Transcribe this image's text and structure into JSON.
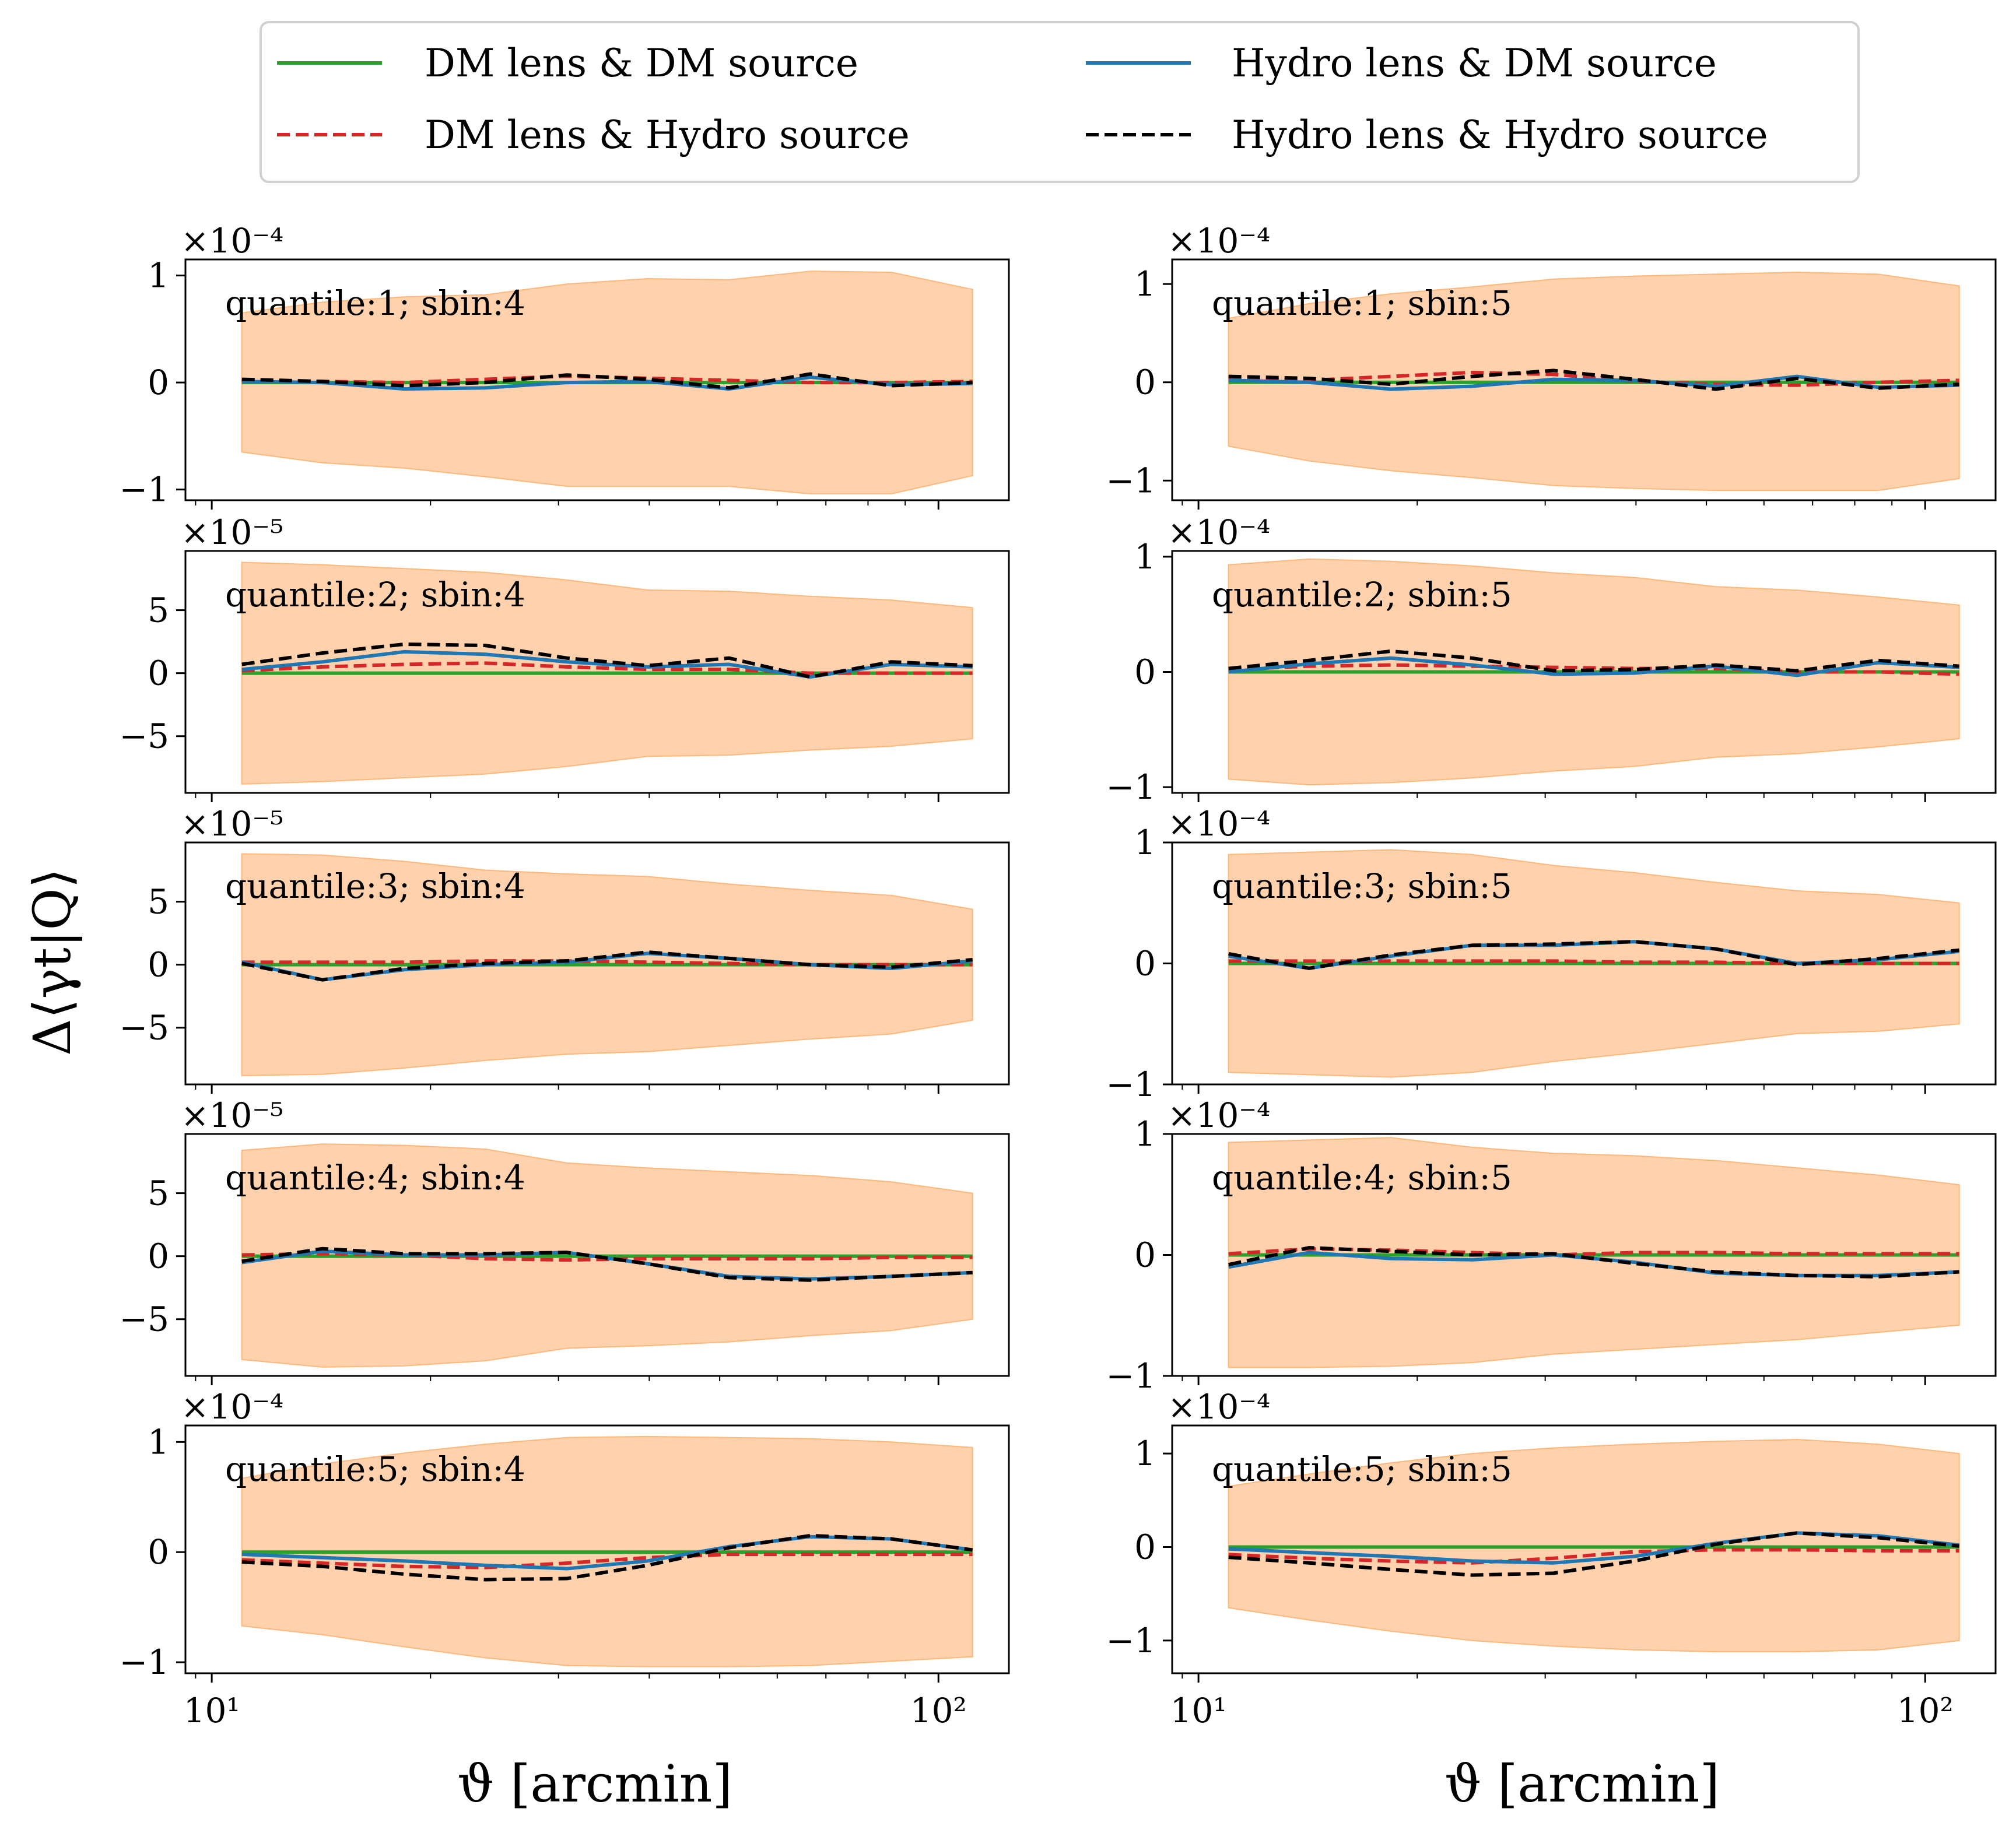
{
  "legend": {
    "columns": 2,
    "entries": [
      {
        "label": "DM lens & DM source",
        "color": "#2ca02c",
        "dash": "solid"
      },
      {
        "label": "DM lens & Hydro source",
        "color": "#d62728",
        "dash": "dashed"
      },
      {
        "label": "Hydro lens & DM source",
        "color": "#1f77b4",
        "dash": "solid"
      },
      {
        "label": "Hydro lens & Hydro source",
        "color": "#000000",
        "dash": "dashed"
      }
    ]
  },
  "ylabel": "Δ⟨γt|Q⟩",
  "xlabel": "ϑ [arcmin]",
  "band_color": "#ffb77a",
  "chart_data": {
    "type": "line",
    "xscale": "log",
    "xlim": [
      9.2,
      125
    ],
    "x": [
      11.0,
      14.2,
      18.4,
      23.8,
      30.8,
      39.8,
      51.5,
      66.6,
      86.1,
      111.4
    ],
    "x_ticks": [
      {
        "value": 10,
        "label": "10¹"
      },
      {
        "value": 100,
        "label": "10²"
      }
    ],
    "panels": [
      {
        "title": "quantile:1; sbin:4",
        "multiplier": "×10⁻⁴",
        "ylim": [
          -1.1,
          1.15
        ],
        "yticks": [
          {
            "v": 1,
            "l": "1"
          },
          {
            "v": 0,
            "l": "0"
          },
          {
            "v": -1,
            "l": "−1"
          }
        ],
        "band_upper": [
          0.65,
          0.75,
          0.8,
          0.82,
          0.92,
          0.97,
          0.96,
          1.04,
          1.03,
          0.87
        ],
        "band_lower": [
          -0.65,
          -0.75,
          -0.8,
          -0.88,
          -0.97,
          -0.97,
          -0.97,
          -1.04,
          -1.04,
          -0.87
        ],
        "series": {
          "dm_dm": [
            0,
            0,
            0,
            0,
            0,
            0,
            0,
            0,
            0,
            0
          ],
          "dm_hydro": [
            0.02,
            0.01,
            0.0,
            0.03,
            0.06,
            0.04,
            0.02,
            0.0,
            0.0,
            0.01
          ],
          "hydro_dm": [
            0.01,
            0.0,
            -0.06,
            -0.05,
            0.0,
            0.01,
            -0.06,
            0.05,
            -0.02,
            -0.01
          ],
          "hydro_hydro": [
            0.03,
            0.01,
            -0.03,
            0.0,
            0.07,
            0.03,
            -0.05,
            0.08,
            -0.03,
            0.0
          ]
        }
      },
      {
        "title": "quantile:1; sbin:5",
        "multiplier": "×10⁻⁴",
        "ylim": [
          -1.2,
          1.25
        ],
        "yticks": [
          {
            "v": 1,
            "l": "1"
          },
          {
            "v": 0,
            "l": "0"
          },
          {
            "v": -1,
            "l": "−1"
          }
        ],
        "band_upper": [
          0.65,
          0.8,
          0.9,
          0.97,
          1.05,
          1.08,
          1.1,
          1.12,
          1.1,
          0.98
        ],
        "band_lower": [
          -0.65,
          -0.8,
          -0.9,
          -0.97,
          -1.05,
          -1.08,
          -1.1,
          -1.1,
          -1.1,
          -0.98
        ],
        "series": {
          "dm_dm": [
            0,
            0,
            0,
            0,
            0,
            0,
            0,
            0,
            0,
            0
          ],
          "dm_hydro": [
            0.03,
            0.02,
            0.06,
            0.1,
            0.08,
            0.01,
            -0.02,
            -0.03,
            0.0,
            0.02
          ],
          "hydro_dm": [
            0.02,
            0.0,
            -0.07,
            -0.04,
            0.03,
            0.02,
            -0.04,
            0.06,
            -0.05,
            -0.03
          ],
          "hydro_hydro": [
            0.06,
            0.04,
            -0.02,
            0.06,
            0.12,
            0.03,
            -0.07,
            0.04,
            -0.06,
            -0.02
          ]
        }
      },
      {
        "title": "quantile:2; sbin:4",
        "multiplier": "×10⁻⁵",
        "ylim": [
          -9.5,
          9.7
        ],
        "yticks": [
          {
            "v": 5,
            "l": "5"
          },
          {
            "v": 0,
            "l": "0"
          },
          {
            "v": -5,
            "l": "−5"
          }
        ],
        "band_upper": [
          8.8,
          8.6,
          8.3,
          8.0,
          7.4,
          6.6,
          6.5,
          6.1,
          5.8,
          5.2
        ],
        "band_lower": [
          -8.8,
          -8.6,
          -8.3,
          -8.0,
          -7.4,
          -6.6,
          -6.5,
          -6.1,
          -5.8,
          -5.2
        ],
        "series": {
          "dm_dm": [
            0,
            0,
            0,
            0,
            0,
            0,
            0,
            0,
            0,
            0
          ],
          "dm_hydro": [
            0.2,
            0.5,
            0.7,
            0.8,
            0.5,
            0.3,
            0.3,
            0.0,
            0.0,
            0.0
          ],
          "hydro_dm": [
            0.3,
            0.9,
            1.7,
            1.5,
            0.9,
            0.5,
            0.7,
            -0.3,
            0.7,
            0.5
          ],
          "hydro_hydro": [
            0.7,
            1.6,
            2.3,
            2.2,
            1.2,
            0.6,
            1.2,
            -0.3,
            0.9,
            0.6
          ]
        }
      },
      {
        "title": "quantile:2; sbin:5",
        "multiplier": "×10⁻⁴",
        "ylim": [
          -1.05,
          1.05
        ],
        "yticks": [
          {
            "v": 1,
            "l": "1"
          },
          {
            "v": 0,
            "l": "0"
          },
          {
            "v": -1,
            "l": "−1"
          }
        ],
        "band_upper": [
          0.93,
          0.98,
          0.96,
          0.92,
          0.86,
          0.82,
          0.74,
          0.71,
          0.65,
          0.58
        ],
        "band_lower": [
          -0.93,
          -0.98,
          -0.96,
          -0.92,
          -0.86,
          -0.82,
          -0.74,
          -0.71,
          -0.65,
          -0.58
        ],
        "series": {
          "dm_dm": [
            0,
            0,
            0,
            0,
            0,
            0,
            0,
            0,
            0,
            0
          ],
          "dm_hydro": [
            0.02,
            0.05,
            0.06,
            0.05,
            0.04,
            0.03,
            0.03,
            0.0,
            0.0,
            -0.02
          ],
          "hydro_dm": [
            0.0,
            0.07,
            0.12,
            0.06,
            -0.02,
            -0.01,
            0.05,
            -0.03,
            0.08,
            0.04
          ],
          "hydro_hydro": [
            0.03,
            0.1,
            0.18,
            0.12,
            0.01,
            0.02,
            0.06,
            0.01,
            0.1,
            0.05
          ]
        }
      },
      {
        "title": "quantile:3; sbin:4",
        "multiplier": "×10⁻⁵",
        "ylim": [
          -9.5,
          9.7
        ],
        "yticks": [
          {
            "v": 5,
            "l": "5"
          },
          {
            "v": 0,
            "l": "0"
          },
          {
            "v": -5,
            "l": "−5"
          }
        ],
        "band_upper": [
          8.8,
          8.7,
          8.2,
          7.5,
          7.2,
          7.0,
          6.4,
          5.9,
          5.5,
          4.4
        ],
        "band_lower": [
          -8.8,
          -8.7,
          -8.2,
          -7.6,
          -7.1,
          -6.9,
          -6.4,
          -5.9,
          -5.5,
          -4.4
        ],
        "series": {
          "dm_dm": [
            0,
            0,
            0,
            0,
            0,
            0,
            0,
            0,
            0,
            0
          ],
          "dm_hydro": [
            0.2,
            0.2,
            0.2,
            0.3,
            0.3,
            0.2,
            0.1,
            0.0,
            0.0,
            0.0
          ],
          "hydro_dm": [
            0.2,
            -1.2,
            -0.4,
            0.0,
            0.2,
            0.9,
            0.5,
            0.0,
            -0.3,
            0.3
          ],
          "hydro_hydro": [
            0.1,
            -1.2,
            -0.3,
            0.1,
            0.3,
            1.0,
            0.5,
            0.0,
            -0.2,
            0.4
          ]
        }
      },
      {
        "title": "quantile:3; sbin:5",
        "multiplier": "×10⁻⁴",
        "ylim": [
          -1.0,
          1.0
        ],
        "yticks": [
          {
            "v": 1,
            "l": "1"
          },
          {
            "v": 0,
            "l": "0"
          },
          {
            "v": -1,
            "l": "−1"
          }
        ],
        "band_upper": [
          0.9,
          0.92,
          0.94,
          0.9,
          0.81,
          0.75,
          0.67,
          0.6,
          0.57,
          0.5
        ],
        "band_lower": [
          -0.9,
          -0.92,
          -0.94,
          -0.9,
          -0.81,
          -0.74,
          -0.66,
          -0.58,
          -0.56,
          -0.5
        ],
        "series": {
          "dm_dm": [
            0,
            0,
            0,
            0,
            0,
            0,
            0,
            0,
            0,
            0
          ],
          "dm_hydro": [
            0.02,
            0.02,
            0.02,
            0.02,
            0.02,
            0.01,
            0.01,
            0.0,
            0.0,
            0.0
          ],
          "hydro_dm": [
            0.06,
            -0.04,
            0.06,
            0.15,
            0.15,
            0.18,
            0.12,
            0.0,
            0.03,
            0.1
          ],
          "hydro_hydro": [
            0.08,
            -0.04,
            0.07,
            0.15,
            0.16,
            0.18,
            0.12,
            -0.01,
            0.04,
            0.11
          ]
        }
      },
      {
        "title": "quantile:4; sbin:4",
        "multiplier": "×10⁻⁵",
        "ylim": [
          -9.5,
          9.7
        ],
        "yticks": [
          {
            "v": 5,
            "l": "5"
          },
          {
            "v": 0,
            "l": "0"
          },
          {
            "v": -5,
            "l": "−5"
          }
        ],
        "band_upper": [
          8.4,
          8.9,
          8.8,
          8.5,
          7.4,
          7.0,
          6.7,
          6.4,
          5.9,
          5.0
        ],
        "band_lower": [
          -8.2,
          -8.8,
          -8.7,
          -8.3,
          -7.3,
          -7.1,
          -6.8,
          -6.3,
          -5.9,
          -5.0
        ],
        "series": {
          "dm_dm": [
            0,
            0,
            0,
            0,
            0,
            0,
            0,
            0,
            0,
            0
          ],
          "dm_hydro": [
            0.1,
            0.2,
            0.1,
            -0.2,
            -0.3,
            -0.2,
            -0.2,
            -0.2,
            -0.1,
            -0.1
          ],
          "hydro_dm": [
            -0.5,
            0.4,
            0.1,
            0.1,
            0.3,
            -0.6,
            -1.6,
            -1.8,
            -1.6,
            -1.3
          ],
          "hydro_hydro": [
            -0.4,
            0.6,
            0.2,
            0.2,
            0.3,
            -0.6,
            -1.7,
            -1.9,
            -1.6,
            -1.3
          ]
        }
      },
      {
        "title": "quantile:4; sbin:5",
        "multiplier": "×10⁻⁴",
        "ylim": [
          -1.0,
          1.0
        ],
        "yticks": [
          {
            "v": 1,
            "l": "1"
          },
          {
            "v": 0,
            "l": "0"
          },
          {
            "v": -1,
            "l": "−1"
          }
        ],
        "band_upper": [
          0.93,
          0.95,
          0.97,
          0.89,
          0.84,
          0.82,
          0.78,
          0.72,
          0.66,
          0.58
        ],
        "band_lower": [
          -0.93,
          -0.93,
          -0.92,
          -0.89,
          -0.82,
          -0.78,
          -0.74,
          -0.7,
          -0.64,
          -0.58
        ],
        "series": {
          "dm_dm": [
            0,
            0,
            0,
            0,
            0,
            0,
            0,
            0,
            0,
            0
          ],
          "dm_hydro": [
            0.01,
            0.05,
            0.04,
            0.02,
            0.0,
            0.02,
            0.02,
            0.01,
            0.01,
            0.01
          ],
          "hydro_dm": [
            -0.1,
            0.02,
            -0.03,
            -0.04,
            0.0,
            -0.06,
            -0.15,
            -0.17,
            -0.17,
            -0.14
          ],
          "hydro_hydro": [
            -0.08,
            0.06,
            0.03,
            0.0,
            0.01,
            -0.07,
            -0.14,
            -0.17,
            -0.18,
            -0.14
          ]
        }
      },
      {
        "title": "quantile:5; sbin:4",
        "multiplier": "×10⁻⁴",
        "ylim": [
          -1.1,
          1.15
        ],
        "yticks": [
          {
            "v": 1,
            "l": "1"
          },
          {
            "v": 0,
            "l": "0"
          },
          {
            "v": -1,
            "l": "−1"
          }
        ],
        "band_upper": [
          0.67,
          0.8,
          0.9,
          0.98,
          1.04,
          1.05,
          1.04,
          1.03,
          1.0,
          0.95
        ],
        "band_lower": [
          -0.67,
          -0.75,
          -0.86,
          -0.96,
          -1.03,
          -1.04,
          -1.04,
          -1.03,
          -0.99,
          -0.95
        ],
        "series": {
          "dm_dm": [
            0,
            0,
            0,
            0,
            0,
            0,
            0,
            0,
            0,
            0
          ],
          "dm_hydro": [
            -0.07,
            -0.1,
            -0.13,
            -0.14,
            -0.1,
            -0.05,
            -0.02,
            -0.02,
            -0.02,
            -0.02
          ],
          "hydro_dm": [
            -0.02,
            -0.05,
            -0.08,
            -0.12,
            -0.15,
            -0.08,
            0.05,
            0.14,
            0.12,
            0.02
          ],
          "hydro_hydro": [
            -0.09,
            -0.13,
            -0.2,
            -0.25,
            -0.24,
            -0.12,
            0.04,
            0.15,
            0.12,
            0.02
          ]
        }
      },
      {
        "title": "quantile:5; sbin:5",
        "multiplier": "×10⁻⁴",
        "ylim": [
          -1.35,
          1.3
        ],
        "yticks": [
          {
            "v": 1,
            "l": "1"
          },
          {
            "v": 0,
            "l": "0"
          },
          {
            "v": -1,
            "l": "−1"
          }
        ],
        "band_upper": [
          0.65,
          0.78,
          0.9,
          1.0,
          1.06,
          1.1,
          1.13,
          1.15,
          1.1,
          1.0
        ],
        "band_lower": [
          -0.65,
          -0.78,
          -0.9,
          -1.0,
          -1.06,
          -1.1,
          -1.12,
          -1.12,
          -1.1,
          -1.0
        ],
        "series": {
          "dm_dm": [
            0,
            0,
            0,
            0,
            0,
            0,
            0,
            0,
            0,
            0
          ],
          "dm_hydro": [
            -0.08,
            -0.12,
            -0.15,
            -0.17,
            -0.12,
            -0.05,
            -0.03,
            -0.03,
            -0.04,
            -0.04
          ],
          "hydro_dm": [
            -0.02,
            -0.06,
            -0.1,
            -0.15,
            -0.17,
            -0.1,
            0.04,
            0.15,
            0.12,
            0.02
          ],
          "hydro_hydro": [
            -0.11,
            -0.17,
            -0.24,
            -0.3,
            -0.28,
            -0.15,
            0.03,
            0.15,
            0.1,
            0.01
          ]
        }
      }
    ]
  }
}
